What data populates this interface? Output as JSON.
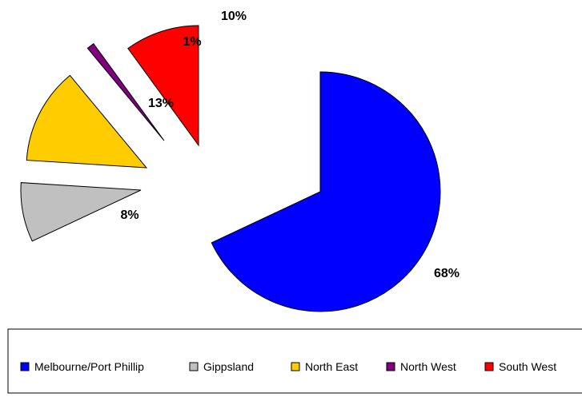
{
  "chart_data": {
    "type": "pie",
    "title": "",
    "exploded": true,
    "categories": [
      "Melbourne/Port Phillip",
      "Gippsland",
      "North East",
      "North West",
      "South West"
    ],
    "values": [
      68,
      8,
      13,
      1,
      10
    ],
    "labels": [
      "68%",
      "8%",
      "13%",
      "1%",
      "10%"
    ],
    "colors": [
      "#0000ff",
      "#c0c0c0",
      "#ffcc00",
      "#800080",
      "#ff0000"
    ],
    "legend": {
      "placement": "bottom",
      "entries": [
        "Melbourne/Port Phillip",
        "Gippsland",
        "North East",
        "North West",
        "South West"
      ]
    }
  }
}
